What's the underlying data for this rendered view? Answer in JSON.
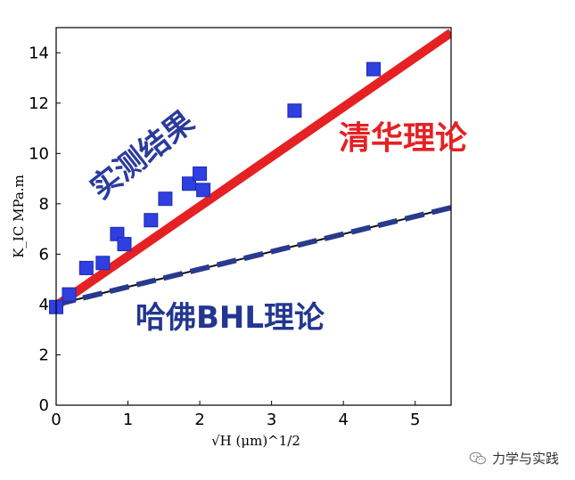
{
  "chart_data": {
    "type": "scatter",
    "xlim": [
      0,
      5.5
    ],
    "ylim": [
      0,
      15
    ],
    "x_ticks": [
      0,
      1,
      2,
      3,
      4,
      5
    ],
    "y_ticks": [
      0,
      2,
      4,
      6,
      8,
      10,
      12,
      14
    ],
    "ylabel": "K_IC  MPa.m",
    "xlabel": "√H (μm)^1/2",
    "series": [
      {
        "name": "实测结果",
        "kind": "scatter",
        "color": "#2f3fe0",
        "points": [
          [
            0.0,
            3.9
          ],
          [
            0.18,
            4.4
          ],
          [
            0.42,
            5.45
          ],
          [
            0.65,
            5.65
          ],
          [
            0.85,
            6.8
          ],
          [
            0.95,
            6.4
          ],
          [
            1.32,
            7.35
          ],
          [
            1.52,
            8.2
          ],
          [
            1.85,
            8.8
          ],
          [
            2.0,
            9.2
          ],
          [
            2.05,
            8.55
          ],
          [
            3.32,
            11.7
          ],
          [
            4.42,
            13.35
          ]
        ]
      },
      {
        "name": "清华理论",
        "kind": "line",
        "color": "#e52124",
        "points": [
          [
            0,
            3.95
          ],
          [
            5.5,
            14.8
          ]
        ]
      },
      {
        "name": "哈佛BHL理论",
        "kind": "dashed-line",
        "color": "#283a8e",
        "points": [
          [
            0,
            4.0
          ],
          [
            5.5,
            7.85
          ]
        ]
      }
    ],
    "annotations": {
      "measured": "实测结果",
      "tsinghua": "清华理论",
      "harvard": "哈佛BHL理论"
    },
    "colors": {
      "measured_text": "#2b3b9c",
      "tsinghua_text": "#e52124",
      "harvard_text": "#233690"
    }
  },
  "watermark": {
    "text": "力学与实践",
    "icon": "wechat-icon"
  }
}
